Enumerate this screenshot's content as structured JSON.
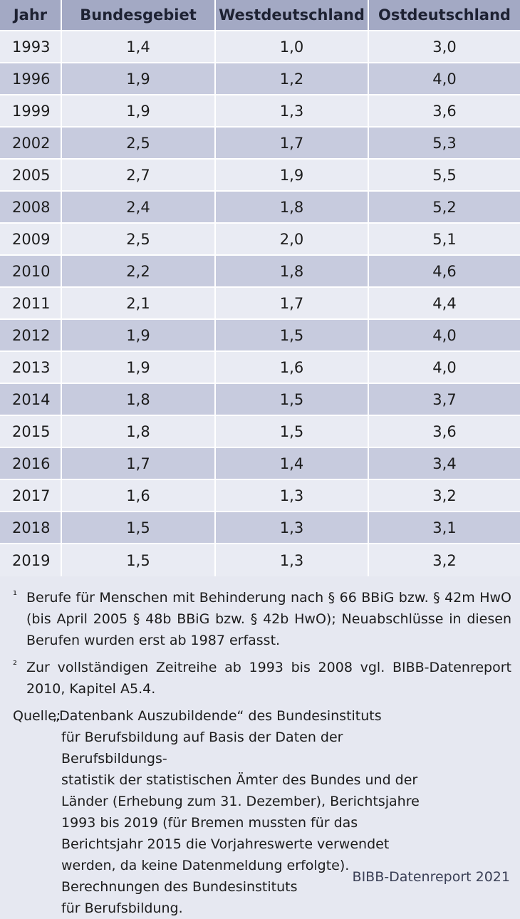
{
  "table": {
    "headers": [
      "Jahr",
      "Bundesgebiet",
      "Westdeutschland",
      "Ostdeutschland"
    ],
    "rows": [
      [
        "1993",
        "1,4",
        "1,0",
        "3,0"
      ],
      [
        "1996",
        "1,9",
        "1,2",
        "4,0"
      ],
      [
        "1999",
        "1,9",
        "1,3",
        "3,6"
      ],
      [
        "2002",
        "2,5",
        "1,7",
        "5,3"
      ],
      [
        "2005",
        "2,7",
        "1,9",
        "5,5"
      ],
      [
        "2008",
        "2,4",
        "1,8",
        "5,2"
      ],
      [
        "2009",
        "2,5",
        "2,0",
        "5,1"
      ],
      [
        "2010",
        "2,2",
        "1,8",
        "4,6"
      ],
      [
        "2011",
        "2,1",
        "1,7",
        "4,4"
      ],
      [
        "2012",
        "1,9",
        "1,5",
        "4,0"
      ],
      [
        "2013",
        "1,9",
        "1,6",
        "4,0"
      ],
      [
        "2014",
        "1,8",
        "1,5",
        "3,7"
      ],
      [
        "2015",
        "1,8",
        "1,5",
        "3,6"
      ],
      [
        "2016",
        "1,7",
        "1,4",
        "3,4"
      ],
      [
        "2017",
        "1,6",
        "1,3",
        "3,2"
      ],
      [
        "2018",
        "1,5",
        "1,3",
        "3,1"
      ],
      [
        "2019",
        "1,5",
        "1,3",
        "3,2"
      ]
    ]
  },
  "footnotes": {
    "fn1_mark": "¹",
    "fn1_text": "Berufe für Menschen mit Behinderung nach § 66 BBiG bzw. § 42m HwO (bis April 2005 § 48b BBiG bzw. § 42b HwO); Neuabschlüsse in diesen Berufen wurden erst ab 1987 erfasst.",
    "fn2_mark": "²",
    "fn2_text": "Zur vollständigen Zeitreihe ab 1993 bis 2008 vgl. BIBB-Datenreport 2010, Kapitel A5.4."
  },
  "source": {
    "label": "Quelle:",
    "lines": [
      "„Datenbank Auszubildende“ des Bundesinstituts",
      "für Berufsbildung auf Basis der Daten der Berufsbildungs-",
      "statistik der statistischen Ämter des Bundes und der",
      "Länder (Erhebung zum 31. Dezember), Berichtsjahre",
      "1993 bis 2019 (für Bremen mussten für das",
      "Berichtsjahr 2015 die Vorjahreswerte verwendet",
      "werden, da keine Datenmeldung erfolgte).",
      "Berechnungen des Bundesinstituts",
      "für Berufsbildung."
    ]
  },
  "credit": "BIBB-Datenreport 2021"
}
